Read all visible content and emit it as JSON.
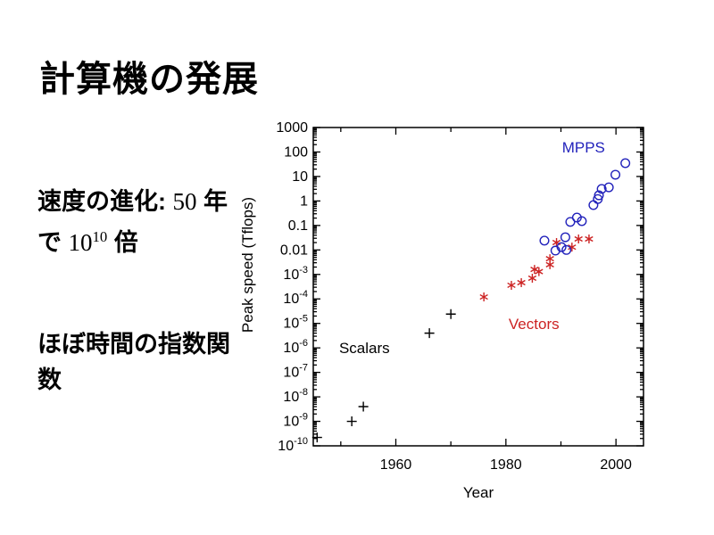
{
  "slide": {
    "title": "計算機の発展"
  },
  "notes": {
    "speed": {
      "line1_jp": "速度の進化: ",
      "line1_num": "50",
      "line1_jp2": " 年",
      "line2_jp": "で ",
      "line2_base": "10",
      "line2_exp": "10",
      "line2_jp2": " 倍"
    },
    "exponential": {
      "line1": "ほぼ時間の指数関",
      "line2": "数"
    }
  },
  "colors": {
    "scalars": "#000000",
    "vectors": "#cc2222",
    "mpps": "#2222bb",
    "axis": "#000000"
  },
  "chart_data": {
    "type": "scatter",
    "xlabel": "Year",
    "ylabel": "Peak speed (Tflops)",
    "x_range": [
      1945,
      2005
    ],
    "y_exp_range": [
      -10,
      3
    ],
    "x_scale": "linear",
    "y_scale": "log",
    "grid": false,
    "x_ticks_major": [
      1960,
      1980,
      2000
    ],
    "x_ticks_minor": [
      1950,
      1970,
      1990
    ],
    "y_tick_exponents": [
      3,
      2,
      1,
      0,
      -1,
      -2,
      -3,
      -4,
      -5,
      -6,
      -7,
      -8,
      -9,
      -10
    ],
    "series": [
      {
        "name": "Scalars",
        "marker": "plus",
        "color": "#000000",
        "points": [
          [
            1945.7,
            2.2e-10
          ],
          [
            1952.0,
            1e-09
          ],
          [
            1954.1,
            4e-09
          ],
          [
            1966.1,
            4e-06
          ],
          [
            1970.0,
            2.4e-05
          ]
        ]
      },
      {
        "name": "Vectors",
        "marker": "asterisk",
        "color": "#cc2222",
        "points": [
          [
            1976.0,
            0.00012
          ],
          [
            1981.0,
            0.00036
          ],
          [
            1982.8,
            0.00046
          ],
          [
            1984.8,
            0.0007
          ],
          [
            1985.2,
            0.0016
          ],
          [
            1986.0,
            0.0013
          ],
          [
            1988.0,
            0.0025
          ],
          [
            1988.0,
            0.0044
          ],
          [
            1989.2,
            0.02
          ],
          [
            1992.0,
            0.013
          ],
          [
            1993.2,
            0.028
          ],
          [
            1995.1,
            0.028
          ]
        ]
      },
      {
        "name": "MPPS",
        "marker": "circle",
        "color": "#2222bb",
        "points": [
          [
            1987.0,
            0.024
          ],
          [
            1989.0,
            0.0094
          ],
          [
            1990.1,
            0.013
          ],
          [
            1991.0,
            0.01
          ],
          [
            1990.8,
            0.033
          ],
          [
            1991.7,
            0.14
          ],
          [
            1992.9,
            0.21
          ],
          [
            1993.8,
            0.15
          ],
          [
            1995.9,
            0.68
          ],
          [
            1996.7,
            1.2
          ],
          [
            1996.9,
            1.7
          ],
          [
            1997.4,
            3.1
          ],
          [
            1998.7,
            3.6
          ],
          [
            1999.9,
            11.8
          ],
          [
            2001.7,
            35.0
          ]
        ]
      }
    ],
    "labels": [
      {
        "text": "Scalars",
        "color": "#000000",
        "year": 1949.7,
        "log10": -6.21
      },
      {
        "text": "Vectors",
        "color": "#cc2222",
        "year": 1980.5,
        "log10": -5.23
      },
      {
        "text": "MPPS",
        "color": "#2222bb",
        "year": 1990.2,
        "log10": 1.98
      }
    ]
  }
}
